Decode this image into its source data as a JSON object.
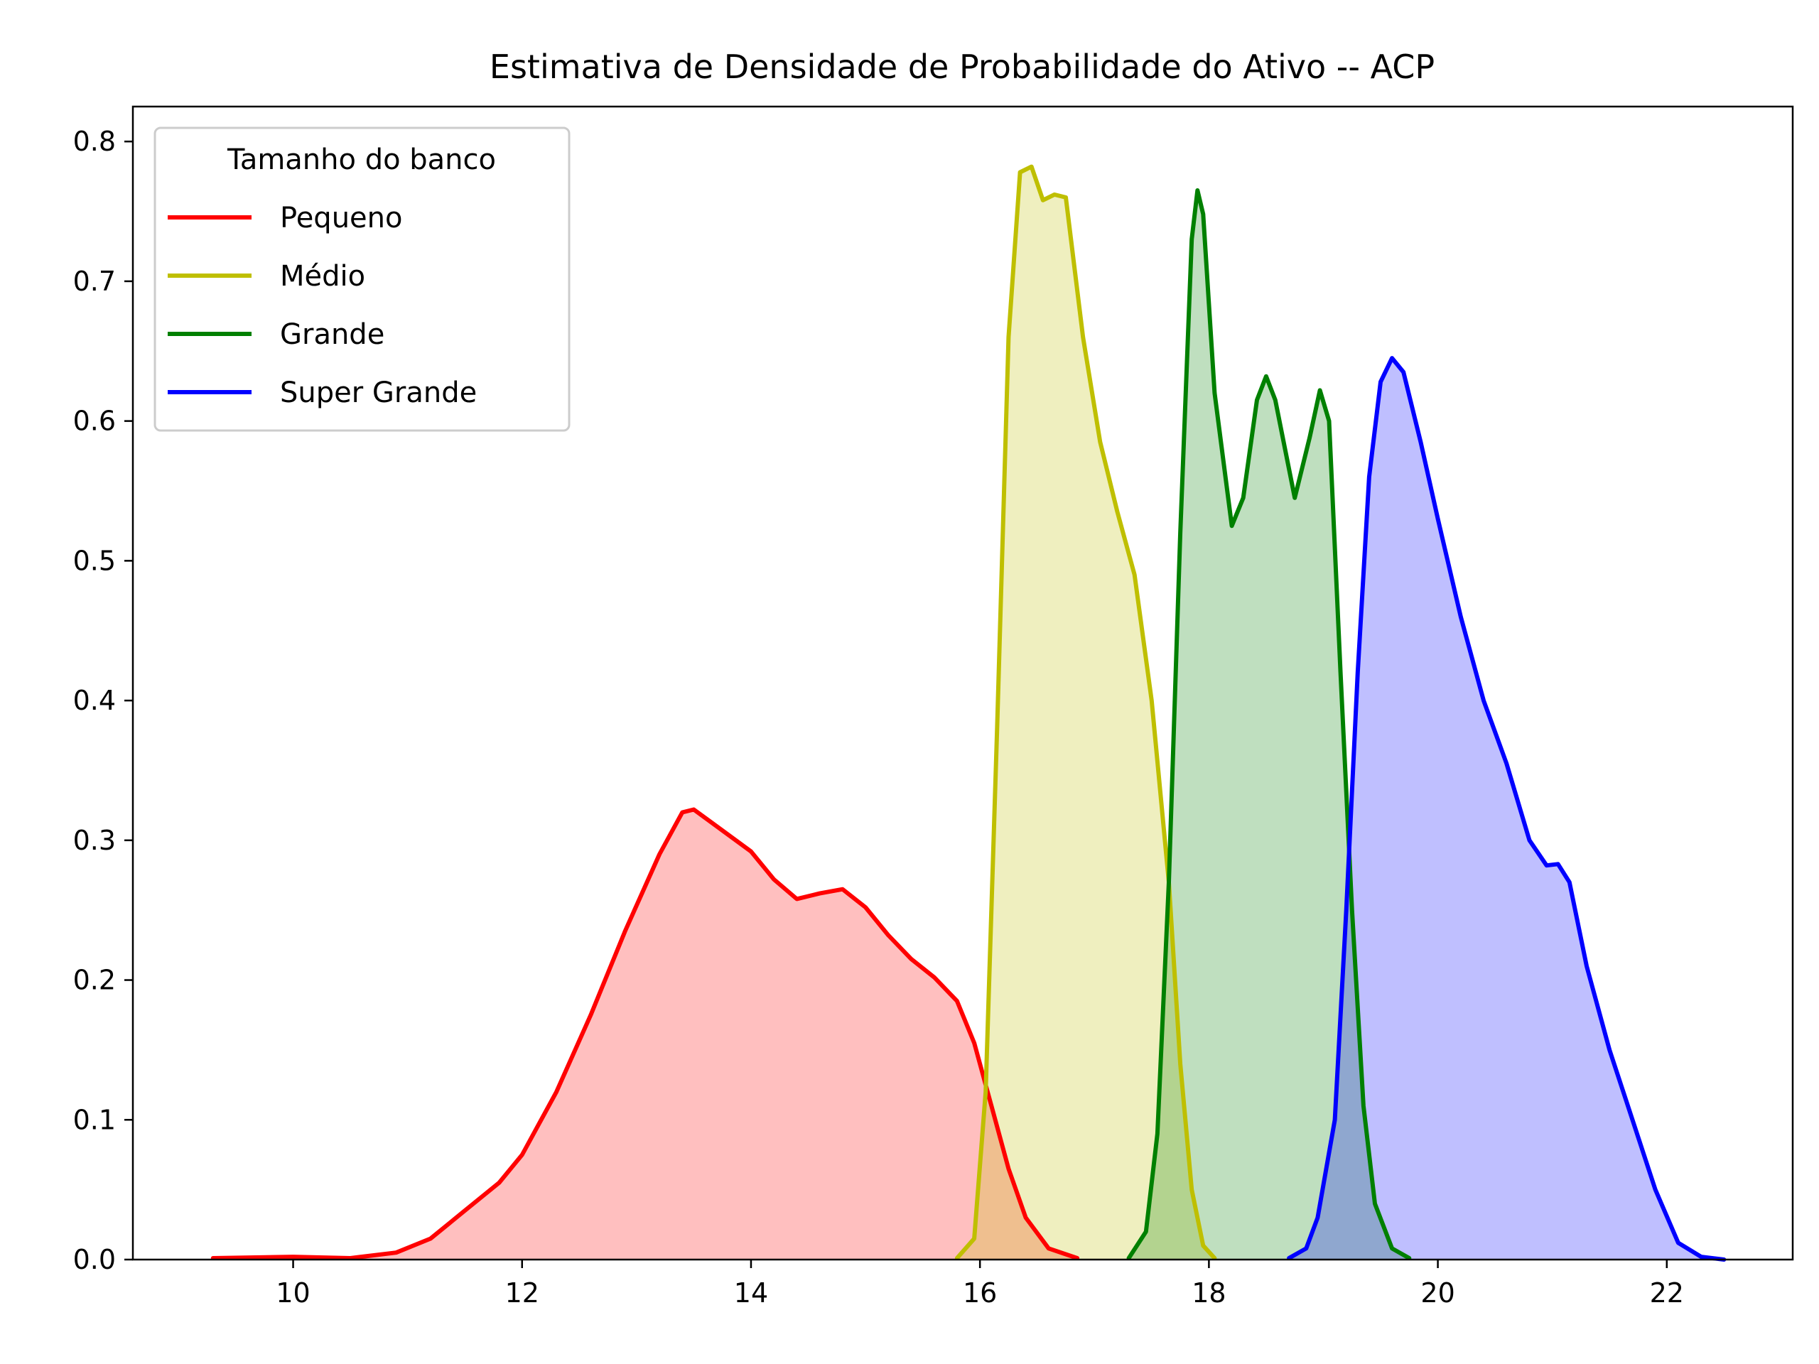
{
  "chart_data": {
    "type": "area",
    "title": "Estimativa de Densidade de Probabilidade do Ativo -- ACP",
    "xlabel": "",
    "ylabel": "",
    "xlim": [
      8.6,
      23.1
    ],
    "ylim": [
      0,
      0.825
    ],
    "x_ticks": [
      10,
      12,
      14,
      16,
      18,
      20,
      22
    ],
    "y_ticks": [
      0.0,
      0.1,
      0.2,
      0.3,
      0.4,
      0.5,
      0.6,
      0.7,
      0.8
    ],
    "x_tick_labels": [
      "10",
      "12",
      "14",
      "16",
      "18",
      "20",
      "22"
    ],
    "y_tick_labels": [
      "0.0",
      "0.1",
      "0.2",
      "0.3",
      "0.4",
      "0.5",
      "0.6",
      "0.7",
      "0.8"
    ],
    "grid": false,
    "legend": {
      "title": "Tamanho do banco",
      "placement": "top-left"
    },
    "series": [
      {
        "name": "Pequeno",
        "color": "#ff0000",
        "fill": "#ffbfbf",
        "points": [
          [
            9.3,
            0.001
          ],
          [
            10.0,
            0.002
          ],
          [
            10.5,
            0.001
          ],
          [
            10.9,
            0.005
          ],
          [
            11.2,
            0.015
          ],
          [
            11.5,
            0.035
          ],
          [
            11.8,
            0.055
          ],
          [
            12.0,
            0.075
          ],
          [
            12.3,
            0.12
          ],
          [
            12.6,
            0.175
          ],
          [
            12.9,
            0.235
          ],
          [
            13.2,
            0.29
          ],
          [
            13.4,
            0.32
          ],
          [
            13.5,
            0.322
          ],
          [
            13.7,
            0.31
          ],
          [
            14.0,
            0.292
          ],
          [
            14.2,
            0.272
          ],
          [
            14.4,
            0.258
          ],
          [
            14.6,
            0.262
          ],
          [
            14.8,
            0.265
          ],
          [
            15.0,
            0.252
          ],
          [
            15.2,
            0.232
          ],
          [
            15.4,
            0.215
          ],
          [
            15.6,
            0.202
          ],
          [
            15.8,
            0.185
          ],
          [
            15.95,
            0.155
          ],
          [
            16.1,
            0.11
          ],
          [
            16.25,
            0.065
          ],
          [
            16.4,
            0.03
          ],
          [
            16.6,
            0.008
          ],
          [
            16.85,
            0.001
          ]
        ]
      },
      {
        "name": "Médio",
        "color": "#bfbf00",
        "fill": "#eeeebf",
        "points": [
          [
            15.8,
            0.001
          ],
          [
            15.95,
            0.015
          ],
          [
            16.05,
            0.12
          ],
          [
            16.15,
            0.38
          ],
          [
            16.25,
            0.66
          ],
          [
            16.35,
            0.778
          ],
          [
            16.45,
            0.782
          ],
          [
            16.55,
            0.758
          ],
          [
            16.65,
            0.762
          ],
          [
            16.75,
            0.76
          ],
          [
            16.9,
            0.66
          ],
          [
            17.05,
            0.585
          ],
          [
            17.2,
            0.535
          ],
          [
            17.35,
            0.49
          ],
          [
            17.5,
            0.4
          ],
          [
            17.65,
            0.27
          ],
          [
            17.75,
            0.14
          ],
          [
            17.85,
            0.05
          ],
          [
            17.95,
            0.01
          ],
          [
            18.05,
            0.001
          ]
        ]
      },
      {
        "name": "Grande",
        "color": "#008000",
        "fill": "#bfdfbf",
        "points": [
          [
            17.3,
            0.001
          ],
          [
            17.45,
            0.02
          ],
          [
            17.55,
            0.09
          ],
          [
            17.65,
            0.27
          ],
          [
            17.75,
            0.52
          ],
          [
            17.85,
            0.73
          ],
          [
            17.9,
            0.765
          ],
          [
            17.95,
            0.748
          ],
          [
            18.05,
            0.62
          ],
          [
            18.2,
            0.525
          ],
          [
            18.3,
            0.545
          ],
          [
            18.42,
            0.615
          ],
          [
            18.5,
            0.632
          ],
          [
            18.58,
            0.615
          ],
          [
            18.75,
            0.545
          ],
          [
            18.88,
            0.588
          ],
          [
            18.97,
            0.622
          ],
          [
            19.05,
            0.6
          ],
          [
            19.15,
            0.42
          ],
          [
            19.25,
            0.25
          ],
          [
            19.35,
            0.11
          ],
          [
            19.45,
            0.04
          ],
          [
            19.6,
            0.008
          ],
          [
            19.75,
            0.001
          ]
        ]
      },
      {
        "name": "Super Grande",
        "color": "#0000ff",
        "fill": "#bfbfff",
        "points": [
          [
            18.7,
            0.001
          ],
          [
            18.85,
            0.008
          ],
          [
            18.95,
            0.03
          ],
          [
            19.1,
            0.1
          ],
          [
            19.2,
            0.25
          ],
          [
            19.3,
            0.42
          ],
          [
            19.4,
            0.56
          ],
          [
            19.5,
            0.628
          ],
          [
            19.6,
            0.645
          ],
          [
            19.7,
            0.635
          ],
          [
            19.85,
            0.585
          ],
          [
            20.0,
            0.53
          ],
          [
            20.2,
            0.46
          ],
          [
            20.4,
            0.4
          ],
          [
            20.6,
            0.355
          ],
          [
            20.8,
            0.3
          ],
          [
            20.95,
            0.282
          ],
          [
            21.05,
            0.283
          ],
          [
            21.15,
            0.27
          ],
          [
            21.3,
            0.21
          ],
          [
            21.5,
            0.15
          ],
          [
            21.7,
            0.1
          ],
          [
            21.9,
            0.05
          ],
          [
            22.1,
            0.012
          ],
          [
            22.3,
            0.002
          ],
          [
            22.5,
            0.0
          ]
        ]
      }
    ]
  }
}
